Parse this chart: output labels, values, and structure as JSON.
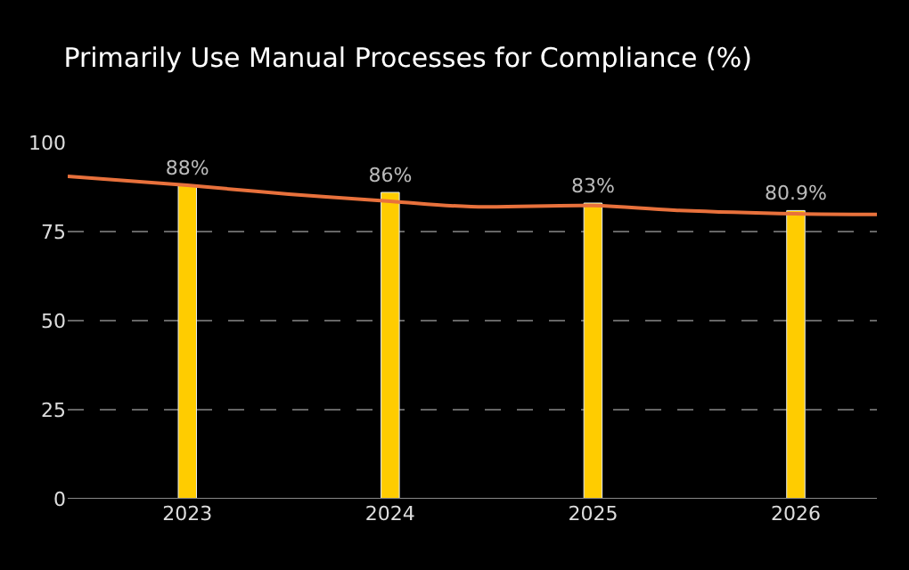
{
  "chart_data": {
    "type": "bar",
    "title": "Primarily Use Manual Processes for Compliance (%)",
    "x": [
      2023,
      2024,
      2025,
      2026
    ],
    "series": [
      {
        "color": "#ffcc00",
        "values": [
          88,
          86,
          83,
          80.9
        ],
        "value_labels": [
          "88%",
          "86%",
          "83%",
          "80.9%"
        ]
      },
      {
        "type": "line",
        "color": "#e8713c",
        "x": [
          2022.41,
          2023,
          2023.5,
          2024,
          2024.4,
          2025,
          2025.4,
          2026,
          2026.4
        ],
        "values": [
          90.5,
          88,
          85.5,
          83.5,
          82,
          82.3,
          81,
          80,
          79.8
        ]
      }
    ],
    "xlim": [
      2022.41,
      2026.4
    ],
    "xticks": [
      2023,
      2024,
      2025,
      2026
    ],
    "ylim": [
      0,
      100
    ],
    "yticks": [
      0,
      25,
      50,
      75,
      100
    ],
    "grid": "y",
    "marker": "none"
  }
}
